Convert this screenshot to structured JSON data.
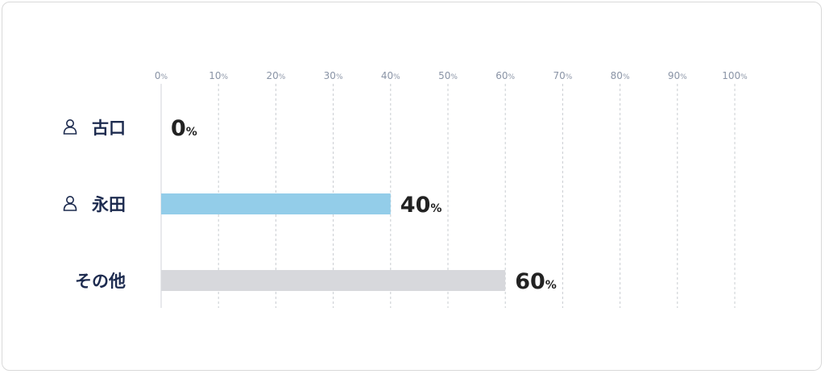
{
  "chart_data": {
    "type": "bar",
    "orientation": "horizontal",
    "categories": [
      "古口",
      "永田",
      "その他"
    ],
    "category_icons": [
      "person-icon",
      "person-icon",
      null
    ],
    "values": [
      0,
      40,
      60
    ],
    "value_unit": "%",
    "xlim": [
      0,
      100
    ],
    "xticks": [
      0,
      10,
      20,
      30,
      40,
      50,
      60,
      70,
      80,
      90,
      100
    ],
    "tick_unit": "%",
    "grid": true,
    "bar_colors": [
      "#93cde9",
      "#93cde9",
      "#d7d8dc"
    ],
    "title": "",
    "xlabel": "",
    "ylabel": ""
  }
}
